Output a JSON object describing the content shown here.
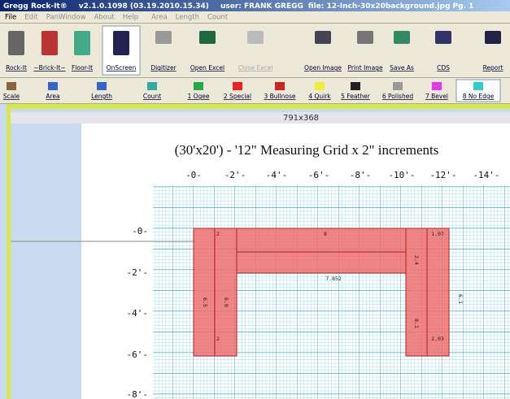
{
  "title_bar": {
    "app": "Gregg Rock-It®",
    "version": "v2.1.0.1098 (03.19.2010.15.34)",
    "user": "user: FRANK GREGG",
    "file": "file: 12-Inch-30x20background.jpg Pg. 1"
  },
  "menu": [
    "File",
    "Edit",
    "PanWindow",
    "About",
    "Help",
    "Area",
    "Length",
    "Count"
  ],
  "toolbar1": [
    "Rock-It",
    "~Brick-It~",
    "Floor-It",
    "OnScreen",
    "Digitizer",
    "Open Excel",
    "Close Excel",
    "Open Image",
    "Print Image",
    "Save As",
    "CDS",
    "Report"
  ],
  "toolbar2": [
    "Scale",
    "Area",
    "Length",
    "Count",
    "1 Ogee",
    "2 Special",
    "3 Bullnose",
    "4 Quirk",
    "5 Feather",
    "6 Polished",
    "7 Bevel",
    "8 No Edge"
  ],
  "canvas": {
    "size": "791x368",
    "title": "(30'x20') - '12\" Measuring Grid x 2\" increments",
    "x_labels": [
      "-0-",
      "-2'-",
      "-4'-",
      "-6'-",
      "-8'-",
      "-10'-",
      "-12'-",
      "-14'-"
    ],
    "y_labels": [
      "-0-",
      "-2'-",
      "-4'-",
      "-6'-",
      "-8'-"
    ],
    "shape_labels": [
      "2",
      "8",
      "1.07",
      "7.852",
      "2",
      "2.03",
      "6.5",
      "6.0",
      "2.4",
      "8.1",
      "6.1"
    ]
  }
}
